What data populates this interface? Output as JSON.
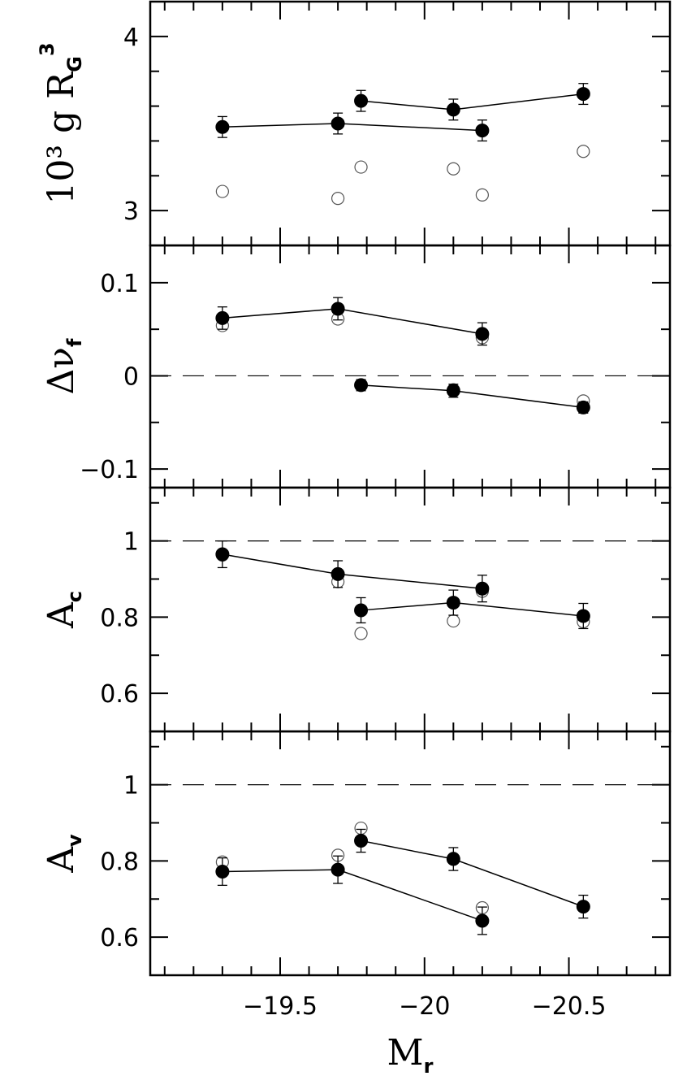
{
  "chart_data": [
    {
      "type": "scatter",
      "ylabel": "10³ g R_G³",
      "ylabel_parts": {
        "main": "10³ g R",
        "sub": "G",
        "sup": "3"
      },
      "ylim": [
        2.8,
        4.2
      ],
      "yticks": [
        3,
        4
      ],
      "ytick_labels": [
        "3",
        "4"
      ],
      "minor_yticks": [
        3.2,
        3.4,
        3.6,
        3.8
      ],
      "reference_line": null,
      "series": [
        {
          "marker": "filled",
          "connected": true,
          "x": [
            -19.3,
            -19.7,
            -20.2
          ],
          "y": [
            3.48,
            3.5,
            3.46
          ],
          "err": [
            0.06,
            0.06,
            0.06
          ]
        },
        {
          "marker": "filled",
          "connected": true,
          "x": [
            -19.78,
            -20.1,
            -20.55
          ],
          "y": [
            3.63,
            3.58,
            3.67
          ],
          "err": [
            0.06,
            0.06,
            0.06
          ]
        },
        {
          "marker": "open",
          "connected": false,
          "x": [
            -19.3,
            -19.7,
            -20.2,
            -19.78,
            -20.1,
            -20.55
          ],
          "y": [
            3.11,
            3.07,
            3.09,
            3.25,
            3.24,
            3.34
          ]
        }
      ]
    },
    {
      "type": "scatter",
      "ylabel": "Δν_f",
      "ylabel_parts": {
        "main": "Δν",
        "sub": "f",
        "sup": ""
      },
      "ylim": [
        -0.12,
        0.14
      ],
      "yticks": [
        -0.1,
        0,
        0.1
      ],
      "ytick_labels": [
        "−0.1",
        "0",
        "0.1"
      ],
      "minor_yticks": [
        -0.05,
        0.05
      ],
      "reference_line": 0,
      "series": [
        {
          "marker": "filled",
          "connected": true,
          "x": [
            -19.3,
            -19.7,
            -20.2
          ],
          "y": [
            0.062,
            0.072,
            0.045
          ],
          "err": [
            0.012,
            0.012,
            0.012
          ]
        },
        {
          "marker": "filled",
          "connected": true,
          "x": [
            -19.78,
            -20.1,
            -20.55
          ],
          "y": [
            -0.01,
            -0.016,
            -0.034
          ],
          "err": [
            0.006,
            0.007,
            0.006
          ]
        },
        {
          "marker": "open",
          "connected": false,
          "x": [
            -19.3,
            -19.7,
            -20.2,
            -19.78,
            -20.1,
            -20.55
          ],
          "y": [
            0.054,
            0.061,
            0.041,
            -0.01,
            -0.015,
            -0.027
          ]
        }
      ]
    },
    {
      "type": "scatter",
      "ylabel": "A_c",
      "ylabel_parts": {
        "main": "A",
        "sub": "c",
        "sup": ""
      },
      "ylim": [
        0.5,
        1.14
      ],
      "yticks": [
        0.6,
        0.8,
        1
      ],
      "ytick_labels": [
        "0.6",
        "0.8",
        "1"
      ],
      "minor_yticks": [
        0.7,
        0.9,
        1.1
      ],
      "reference_line": 1,
      "series": [
        {
          "marker": "filled",
          "connected": true,
          "x": [
            -19.3,
            -19.7,
            -20.2
          ],
          "y": [
            0.965,
            0.913,
            0.875
          ],
          "err": [
            0.035,
            0.035,
            0.035
          ]
        },
        {
          "marker": "filled",
          "connected": true,
          "x": [
            -19.78,
            -20.1,
            -20.55
          ],
          "y": [
            0.818,
            0.838,
            0.803
          ],
          "err": [
            0.033,
            0.033,
            0.033
          ]
        },
        {
          "marker": "open",
          "connected": false,
          "x": [
            -19.3,
            -19.7,
            -20.2,
            -19.78,
            -20.1,
            -20.55
          ],
          "y": [
            0.963,
            0.893,
            0.868,
            0.757,
            0.79,
            0.788
          ]
        }
      ]
    },
    {
      "type": "scatter",
      "ylabel": "A_v",
      "ylabel_parts": {
        "main": "A",
        "sub": "v",
        "sup": ""
      },
      "xlabel": "M_r",
      "xlabel_parts": {
        "main": "M",
        "sub": "r"
      },
      "ylim": [
        0.5,
        1.14
      ],
      "yticks": [
        0.6,
        0.8,
        1
      ],
      "ytick_labels": [
        "0.6",
        "0.8",
        "1"
      ],
      "minor_yticks": [
        0.7,
        0.9,
        1.1
      ],
      "reference_line": 1,
      "series": [
        {
          "marker": "filled",
          "connected": true,
          "x": [
            -19.3,
            -19.7,
            -20.2
          ],
          "y": [
            0.772,
            0.777,
            0.643
          ],
          "err": [
            0.036,
            0.036,
            0.036
          ]
        },
        {
          "marker": "filled",
          "connected": true,
          "x": [
            -19.78,
            -20.1,
            -20.55
          ],
          "y": [
            0.853,
            0.805,
            0.68
          ],
          "err": [
            0.03,
            0.03,
            0.03
          ]
        },
        {
          "marker": "open",
          "connected": false,
          "x": [
            -19.3,
            -19.7,
            -20.2,
            -19.78,
            -20.1,
            -20.55
          ],
          "y": [
            0.797,
            0.815,
            0.677,
            0.886,
            0.807,
            0.68
          ]
        }
      ]
    }
  ],
  "x_axis": {
    "label": "M_r",
    "xlim": [
      -19.05,
      -20.85
    ],
    "major_ticks": [
      -19.5,
      -20,
      -20.5
    ],
    "major_tick_labels": [
      "−19.5",
      "−20",
      "−20.5"
    ],
    "minor_ticks": [
      -19.1,
      -19.2,
      -19.3,
      -19.4,
      -19.6,
      -19.7,
      -19.8,
      -19.9,
      -20.1,
      -20.2,
      -20.3,
      -20.4,
      -20.6,
      -20.7,
      -20.8
    ]
  }
}
